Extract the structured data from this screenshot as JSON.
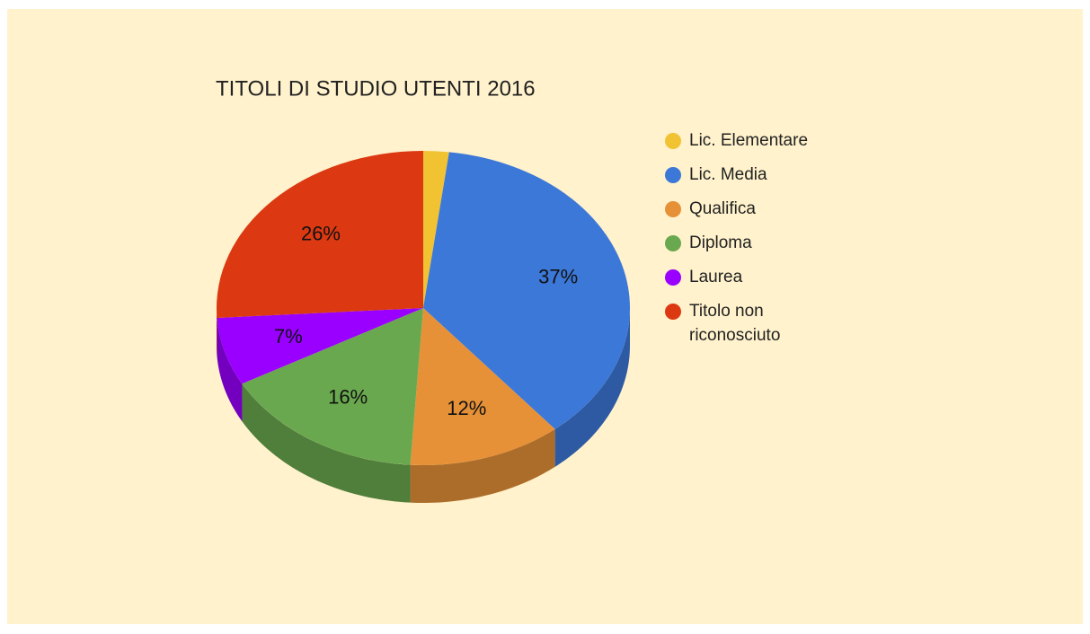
{
  "chart_data": {
    "type": "pie",
    "title": "TITOLI DI STUDIO UTENTI 2016",
    "categories": [
      "Lic. Elementare",
      "Lic. Media",
      "Qualifica",
      "Diploma",
      "Laurea",
      "Titolo non riconosciuto"
    ],
    "values": [
      2,
      37,
      12,
      16,
      7,
      26
    ],
    "value_labels": [
      null,
      "37%",
      "12%",
      "16%",
      "7%",
      "26%"
    ],
    "colors": [
      "#f1c232",
      "#3c78d8",
      "#e69138",
      "#6aa84f",
      "#9900ff",
      "#dc3912"
    ],
    "legend": "right"
  }
}
